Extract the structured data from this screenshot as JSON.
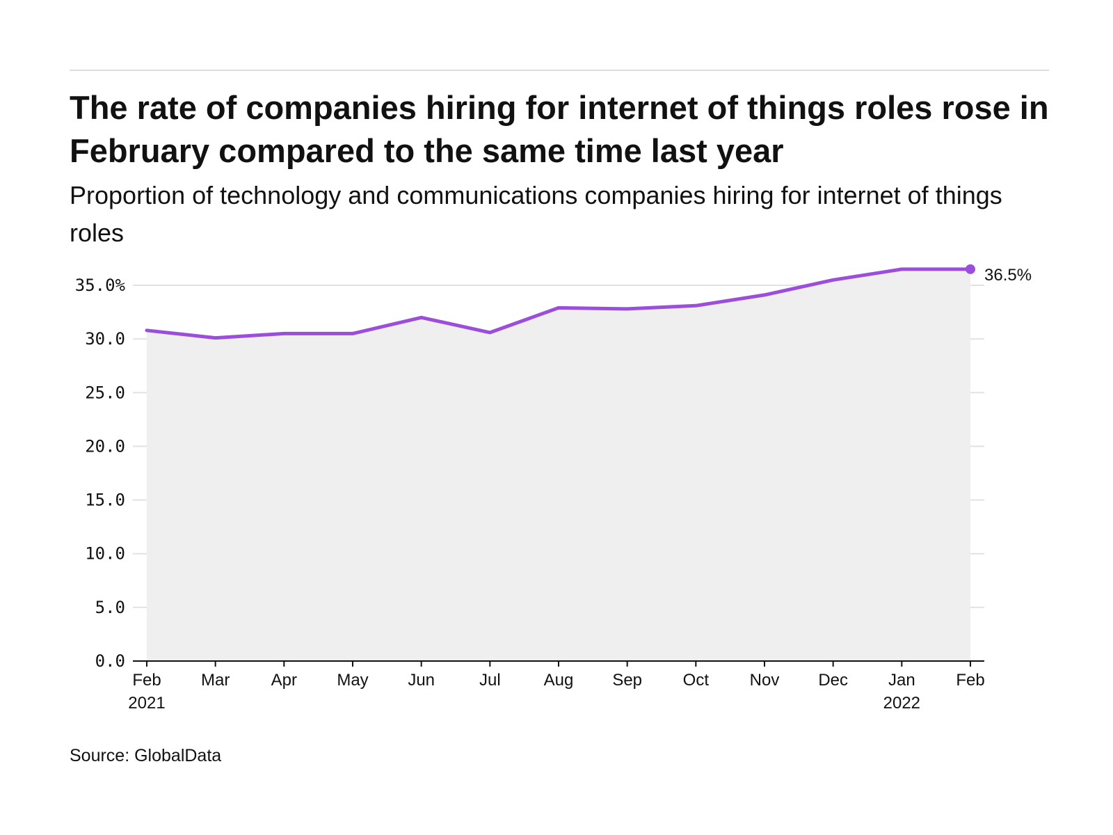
{
  "header": {
    "title": "The rate of companies hiring for internet of things roles rose in February compared to the same time last year",
    "subtitle": "Proportion of technology and communications companies hiring for internet of things roles"
  },
  "footer": {
    "source": "Source: GlobalData"
  },
  "colors": {
    "line": "#9b4ddc",
    "area": "#efefef",
    "grid": "#e2e2e2",
    "axis": "#111111",
    "rule": "#dddddd"
  },
  "chart_data": {
    "type": "area",
    "title": "The rate of companies hiring for internet of things roles rose in February compared to the same time last year",
    "subtitle": "Proportion of technology and communications companies hiring for internet of things roles",
    "xlabel": "",
    "ylabel": "",
    "x": [
      "2021-02",
      "2021-03",
      "2021-04",
      "2021-05",
      "2021-06",
      "2021-07",
      "2021-08",
      "2021-09",
      "2021-10",
      "2021-11",
      "2021-12",
      "2022-01",
      "2022-02"
    ],
    "x_tick_labels": [
      [
        "Feb",
        "2021"
      ],
      [
        "Mar"
      ],
      [
        "Apr"
      ],
      [
        "May"
      ],
      [
        "Jun"
      ],
      [
        "Jul"
      ],
      [
        "Aug"
      ],
      [
        "Sep"
      ],
      [
        "Oct"
      ],
      [
        "Nov"
      ],
      [
        "Dec"
      ],
      [
        "Jan",
        "2022"
      ],
      [
        "Feb"
      ]
    ],
    "series": [
      {
        "values": [
          30.8,
          30.1,
          30.5,
          30.5,
          32.0,
          30.6,
          32.9,
          32.8,
          33.1,
          34.1,
          35.5,
          36.5,
          36.5
        ]
      }
    ],
    "ylim": [
      0,
      35
    ],
    "y_ticks": [
      0,
      5,
      10,
      15,
      20,
      25,
      30,
      35
    ],
    "y_tick_labels": [
      "0.0",
      "5.0",
      "10.0",
      "15.0",
      "20.0",
      "25.0",
      "30.0",
      "35.0%"
    ],
    "end_label": "36.5%",
    "grid": true,
    "legend": "none"
  }
}
